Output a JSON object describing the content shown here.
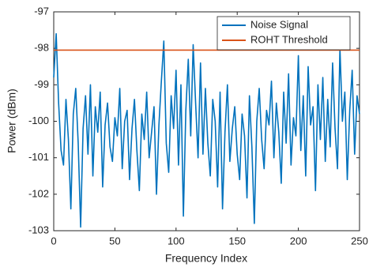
{
  "chart_data": {
    "type": "line",
    "x_label": "Frequency Index",
    "y_label": "Power (dBm)",
    "xlim": [
      0,
      250
    ],
    "ylim": [
      -103,
      -97
    ],
    "xticks": [
      0,
      50,
      100,
      150,
      200,
      250
    ],
    "yticks": [
      -103,
      -102,
      -101,
      -100,
      -99,
      -98,
      -97
    ],
    "grid": false,
    "legend": "northeast",
    "series": [
      {
        "name": "Noise Signal",
        "color": "#0072bd",
        "x": [
          0,
          2,
          4,
          6,
          8,
          10,
          12,
          14,
          16,
          18,
          20,
          22,
          24,
          26,
          28,
          30,
          32,
          34,
          36,
          38,
          40,
          42,
          44,
          46,
          48,
          50,
          52,
          54,
          56,
          58,
          60,
          62,
          64,
          66,
          68,
          70,
          72,
          74,
          76,
          78,
          80,
          82,
          84,
          86,
          88,
          90,
          92,
          94,
          96,
          98,
          100,
          102,
          104,
          106,
          108,
          110,
          112,
          114,
          116,
          118,
          120,
          122,
          124,
          126,
          128,
          130,
          132,
          134,
          136,
          138,
          140,
          142,
          144,
          146,
          148,
          150,
          152,
          154,
          156,
          158,
          160,
          162,
          164,
          166,
          168,
          170,
          172,
          174,
          176,
          178,
          180,
          182,
          184,
          186,
          188,
          190,
          192,
          194,
          196,
          198,
          200,
          202,
          204,
          206,
          208,
          210,
          212,
          214,
          216,
          218,
          220,
          222,
          224,
          226,
          228,
          230,
          232,
          234,
          236,
          238,
          240,
          242,
          244,
          246,
          248,
          250
        ],
        "values": [
          -98.8,
          -97.6,
          -99.5,
          -100.8,
          -101.2,
          -99.4,
          -100.5,
          -102.4,
          -99.8,
          -99.1,
          -100.6,
          -102.9,
          -100.2,
          -99.3,
          -100.9,
          -99.0,
          -101.5,
          -99.6,
          -100.3,
          -99.2,
          -101.8,
          -100.1,
          -99.5,
          -100.7,
          -101.1,
          -99.9,
          -100.4,
          -99.1,
          -101.3,
          -100.0,
          -99.7,
          -101.6,
          -100.2,
          -99.4,
          -100.8,
          -101.9,
          -99.8,
          -100.5,
          -99.2,
          -101.0,
          -100.3,
          -99.6,
          -102.0,
          -100.1,
          -98.9,
          -97.8,
          -100.6,
          -101.4,
          -99.3,
          -100.2,
          -98.6,
          -101.2,
          -99.0,
          -102.6,
          -99.7,
          -98.3,
          -100.4,
          -97.9,
          -99.5,
          -101.0,
          -98.4,
          -100.9,
          -99.1,
          -100.6,
          -101.5,
          -99.4,
          -100.0,
          -101.8,
          -99.2,
          -102.4,
          -100.3,
          -99.0,
          -101.1,
          -100.2,
          -99.6,
          -100.9,
          -101.6,
          -99.8,
          -100.4,
          -102.1,
          -99.3,
          -100.7,
          -102.8,
          -100.0,
          -99.1,
          -100.5,
          -101.3,
          -99.7,
          -100.1,
          -98.9,
          -101.0,
          -99.5,
          -100.3,
          -101.7,
          -99.2,
          -100.6,
          -98.7,
          -101.2,
          -99.9,
          -100.4,
          -98.2,
          -100.8,
          -99.3,
          -101.5,
          -98.5,
          -100.1,
          -99.6,
          -101.9,
          -99.0,
          -100.5,
          -98.8,
          -101.1,
          -99.4,
          -100.7,
          -98.4,
          -100.2,
          -101.3,
          -98.0,
          -100.0,
          -99.2,
          -101.6,
          -99.7,
          -98.6,
          -100.9,
          -99.3,
          -99.8
        ]
      },
      {
        "name": "ROHT Threshold",
        "color": "#d95319",
        "x": [
          0,
          250
        ],
        "values": [
          -98.05,
          -98.05
        ]
      }
    ]
  }
}
